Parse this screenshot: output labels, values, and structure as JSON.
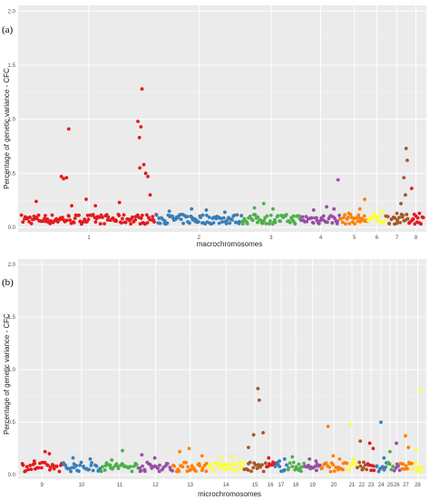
{
  "panels": [
    {
      "label": "(a)",
      "ylabel": "Percentage of genetic variance - CFC",
      "xlabel": "macrochromosomes",
      "yticks": [
        "0.0",
        "0.5",
        "1.0",
        "1.5",
        "2.0"
      ]
    },
    {
      "label": "(b)",
      "ylabel": "Percentage of genetic variance - CFC",
      "xlabel": "microchromosomes",
      "yticks": [
        "0.0",
        "0.5",
        "1.0",
        "1.5",
        "2.0"
      ]
    }
  ],
  "chart_data": [
    {
      "type": "scatter",
      "title": "",
      "panel_label": "(a)",
      "xlabel": "macrochromosomes",
      "ylabel": "Percentage of genetic variance - CFC",
      "ylim": [
        0,
        2.0
      ],
      "yticks": [
        0.0,
        0.5,
        1.0,
        1.5,
        2.0
      ],
      "xlim": [
        0,
        100
      ],
      "grid": true,
      "legend": "none",
      "chromosomes": [
        {
          "name": "1",
          "span": [
            0,
            36.5
          ],
          "color": "#e41a1c",
          "peaks": [
            [
              10.8,
              0.47
            ],
            [
              11.4,
              0.45
            ],
            [
              12.2,
              0.46
            ],
            [
              12.8,
              0.91
            ],
            [
              13.6,
              0.2
            ],
            [
              17.5,
              0.26
            ],
            [
              31.5,
              0.98
            ],
            [
              31.9,
              0.83
            ],
            [
              32.3,
              0.93
            ],
            [
              32.6,
              1.28
            ],
            [
              33.1,
              0.58
            ],
            [
              32.0,
              0.55
            ],
            [
              33.6,
              0.5
            ],
            [
              34.2,
              0.47
            ],
            [
              34.8,
              0.3
            ],
            [
              4.0,
              0.24
            ],
            [
              20.0,
              0.2
            ],
            [
              26.5,
              0.23
            ]
          ]
        },
        {
          "name": "2",
          "span": [
            36.5,
            59.5
          ],
          "color": "#377eb8",
          "peaks": [
            [
              40.0,
              0.15
            ],
            [
              46.0,
              0.17
            ],
            [
              50.0,
              0.16
            ],
            [
              55.0,
              0.14
            ]
          ]
        },
        {
          "name": "3",
          "span": [
            59.5,
            75.5
          ],
          "color": "#4daf4a",
          "peaks": [
            [
              63.0,
              0.18
            ],
            [
              65.5,
              0.22
            ],
            [
              68.0,
              0.17
            ]
          ]
        },
        {
          "name": "4",
          "span": [
            75.5,
            86.3
          ],
          "color": "#984ea3",
          "peaks": [
            [
              79.0,
              0.16
            ],
            [
              82.5,
              0.19
            ],
            [
              84.5,
              0.17
            ],
            [
              85.6,
              0.44
            ]
          ]
        },
        {
          "name": "5",
          "span": [
            86.3,
            93.7
          ],
          "color": "#ff7f00",
          "peaks": [
            [
              88.5,
              0.13
            ],
            [
              91.5,
              0.17
            ],
            [
              92.8,
              0.26
            ]
          ]
        },
        {
          "name": "6",
          "span": [
            93.7,
            98.5
          ],
          "color": "#ffff33",
          "peaks": [
            [
              95.5,
              0.13
            ],
            [
              97.5,
              0.15
            ]
          ]
        },
        {
          "name": "7",
          "span": [
            98.5,
            104.6
          ],
          "color": "#a65628",
          "peaks": [
            [
              101.5,
              0.13
            ],
            [
              103.4,
              0.46
            ],
            [
              104.0,
              0.73
            ],
            [
              104.3,
              0.62
            ],
            [
              103.8,
              0.3
            ],
            [
              102.6,
              0.22
            ]
          ]
        },
        {
          "name": "8",
          "span": [
            104.6,
            108.7
          ],
          "color": "#e41a1c",
          "peaks": [
            [
              105.5,
              0.36
            ],
            [
              106.2,
              0.12
            ],
            [
              107.6,
              0.13
            ]
          ]
        }
      ]
    },
    {
      "type": "scatter",
      "title": "",
      "panel_label": "(b)",
      "xlabel": "microchromosomes",
      "ylabel": "Percentage of genetic variance - CFC",
      "ylim": [
        0,
        2.0
      ],
      "yticks": [
        0.0,
        0.5,
        1.0,
        1.5,
        2.0
      ],
      "grid": true,
      "legend": "none",
      "chromosomes": [
        {
          "name": "9",
          "span": [
            0,
            9.5
          ],
          "color": "#e41a1c",
          "peaks": [
            [
              5.5,
              0.22
            ],
            [
              6.5,
              0.2
            ],
            [
              3.0,
              0.13
            ]
          ]
        },
        {
          "name": "10",
          "span": [
            9.5,
            18.5
          ],
          "color": "#377eb8",
          "peaks": [
            [
              12.0,
              0.16
            ],
            [
              16.0,
              0.15
            ]
          ]
        },
        {
          "name": "11",
          "span": [
            18.5,
            27.2
          ],
          "color": "#4daf4a",
          "peaks": [
            [
              23.5,
              0.23
            ],
            [
              21.0,
              0.14
            ]
          ]
        },
        {
          "name": "12",
          "span": [
            27.2,
            35.2
          ],
          "color": "#984ea3",
          "peaks": [
            [
              28.0,
              0.19
            ],
            [
              31.0,
              0.16
            ]
          ]
        },
        {
          "name": "13",
          "span": [
            35.2,
            43.3
          ],
          "color": "#ff7f00",
          "peaks": [
            [
              36.8,
              0.22
            ],
            [
              39.0,
              0.25
            ],
            [
              42.0,
              0.18
            ]
          ]
        },
        {
          "name": "14",
          "span": [
            43.3,
            51.8
          ],
          "color": "#ffff33",
          "peaks": [
            [
              46.5,
              0.16
            ],
            [
              49.0,
              0.17
            ]
          ]
        },
        {
          "name": "15",
          "span": [
            51.8,
            56.8
          ],
          "color": "#a65628",
          "peaks": [
            [
              55.0,
              0.82
            ],
            [
              55.3,
              0.71
            ],
            [
              54.0,
              0.38
            ],
            [
              56.2,
              0.4
            ],
            [
              52.8,
              0.26
            ]
          ]
        },
        {
          "name": "16",
          "span": [
            56.8,
            59.0
          ],
          "color": "#e41a1c",
          "peaks": [
            [
              57.5,
              0.16
            ],
            [
              58.5,
              0.12
            ]
          ]
        },
        {
          "name": "17",
          "span": [
            59.0,
            61.8
          ],
          "color": "#377eb8",
          "peaks": [
            [
              60.0,
              0.13
            ],
            [
              61.2,
              0.15
            ]
          ]
        },
        {
          "name": "18",
          "span": [
            61.8,
            65.8
          ],
          "color": "#4daf4a",
          "peaks": [
            [
              63.0,
              0.17
            ],
            [
              64.5,
              0.1
            ]
          ]
        },
        {
          "name": "19",
          "span": [
            65.8,
            69.6
          ],
          "color": "#984ea3",
          "peaks": [
            [
              67.0,
              0.15
            ],
            [
              68.5,
              0.13
            ]
          ]
        },
        {
          "name": "20",
          "span": [
            69.6,
            75.7
          ],
          "color": "#ff7f00",
          "peaks": [
            [
              71.3,
              0.46
            ],
            [
              72.5,
              0.18
            ],
            [
              74.0,
              0.15
            ]
          ]
        },
        {
          "name": "21",
          "span": [
            75.7,
            78.0
          ],
          "color": "#ffff33",
          "peaks": [
            [
              76.6,
              0.48
            ],
            [
              77.2,
              0.15
            ]
          ]
        },
        {
          "name": "22",
          "span": [
            78.0,
            80.3
          ],
          "color": "#a65628",
          "peaks": [
            [
              78.8,
              0.32
            ],
            [
              79.6,
              0.12
            ]
          ]
        },
        {
          "name": "23",
          "span": [
            80.3,
            82.3
          ],
          "color": "#e41a1c",
          "peaks": [
            [
              81.0,
              0.3
            ],
            [
              81.8,
              0.25
            ]
          ]
        },
        {
          "name": "24",
          "span": [
            82.3,
            85.0
          ],
          "color": "#377eb8",
          "peaks": [
            [
              83.6,
              0.5
            ],
            [
              84.3,
              0.16
            ]
          ]
        },
        {
          "name": "25",
          "span": [
            85.0,
            86.5
          ],
          "color": "#4daf4a",
          "peaks": [
            [
              85.7,
              0.22
            ]
          ]
        },
        {
          "name": "26",
          "span": [
            86.5,
            88.0
          ],
          "color": "#984ea3",
          "peaks": [
            [
              87.2,
              0.3
            ]
          ]
        },
        {
          "name": "27",
          "span": [
            88.0,
            90.8
          ],
          "color": "#ff7f00",
          "peaks": [
            [
              89.3,
              0.37
            ],
            [
              90.0,
              0.26
            ]
          ]
        },
        {
          "name": "28",
          "span": [
            90.8,
            93.5
          ],
          "color": "#ffff33",
          "peaks": [
            [
              92.8,
              0.8
            ],
            [
              91.8,
              0.24
            ]
          ]
        }
      ]
    }
  ]
}
